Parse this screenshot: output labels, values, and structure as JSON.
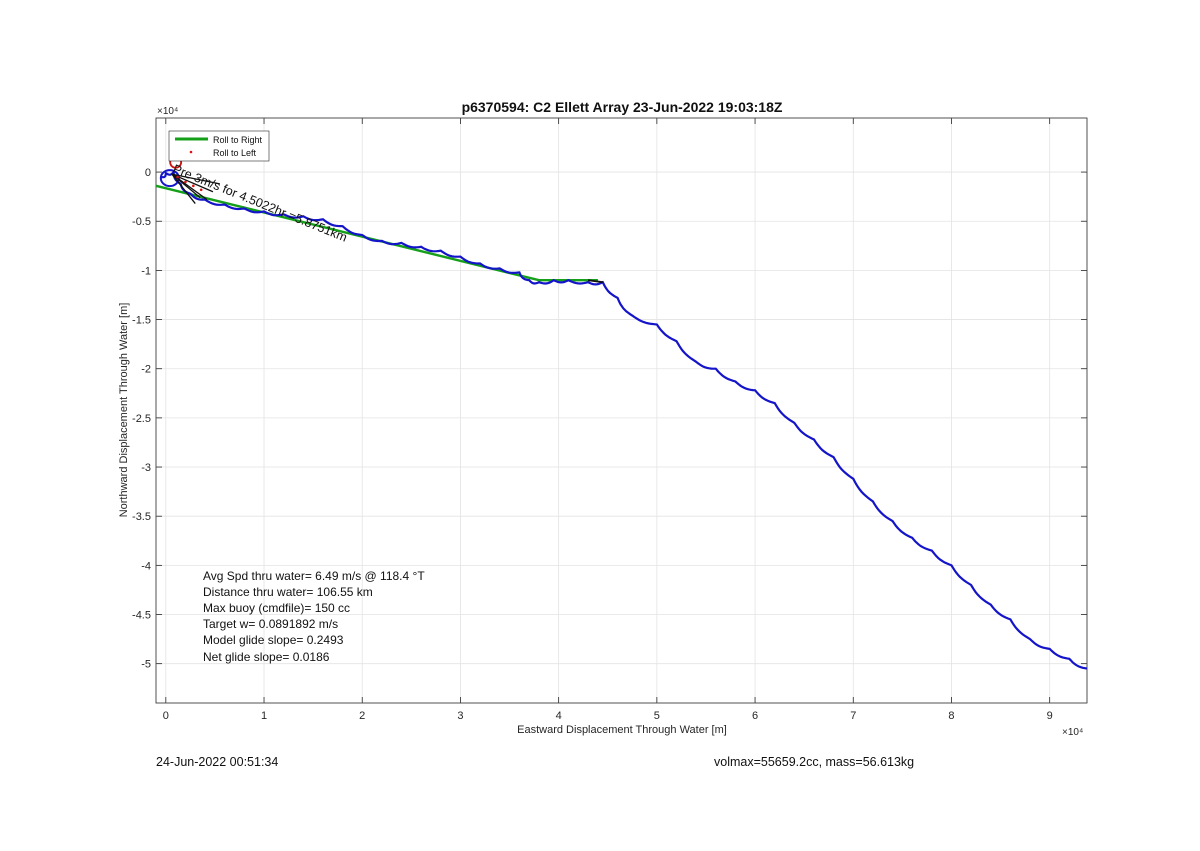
{
  "chart_data": {
    "type": "line",
    "title": "p6370594: C2 Ellett Array 23-Jun-2022 19:03:18Z",
    "xlabel": "Eastward Displacement Through Water [m]",
    "ylabel": "Northward Displacement Through Water [m]",
    "x_exponent_label": "×10⁴",
    "y_exponent_label": "×10⁴",
    "xlim": [
      -0.1,
      9.38
    ],
    "ylim": [
      -5.4,
      0.55
    ],
    "x_scale": 10000,
    "y_scale": 10000,
    "xticks": [
      0,
      1,
      2,
      3,
      4,
      5,
      6,
      7,
      8,
      9
    ],
    "xtick_labels": [
      "0",
      "1",
      "2",
      "3",
      "4",
      "5",
      "6",
      "7",
      "8",
      "9"
    ],
    "yticks": [
      0,
      -0.5,
      -1,
      -1.5,
      -2,
      -2.5,
      -3,
      -3.5,
      -4,
      -4.5,
      -5
    ],
    "ytick_labels": [
      "0",
      "-0.5",
      "-1",
      "-1.5",
      "-2",
      "-2.5",
      "-3",
      "-3.5",
      "-4",
      "-4.5",
      "-5"
    ],
    "grid": true,
    "legend_position": "top-left",
    "legend": [
      {
        "label": "Roll to Right",
        "color": "#16a01a",
        "marker": "line"
      },
      {
        "label": "Roll to Left",
        "color": "#e01010",
        "marker": "dot"
      }
    ],
    "series": [
      {
        "name": "Roll to Right",
        "color": "#16a01a",
        "x": [
          -0.1,
          3.8,
          4.4
        ],
        "y": [
          -0.14,
          -1.1,
          -1.1
        ]
      },
      {
        "color": "#1414c8",
        "x": [
          -0.05,
          0.0,
          0.08,
          0.15,
          0.25,
          0.4,
          0.6,
          0.8,
          1.0,
          1.2,
          1.4,
          1.6,
          1.8,
          2.0,
          2.2,
          2.4,
          2.6,
          2.8,
          3.0,
          3.2,
          3.4,
          3.6,
          3.7,
          3.8,
          3.95,
          4.1,
          4.3,
          4.45,
          4.6,
          4.75,
          5.0,
          5.2,
          5.4,
          5.6,
          5.8,
          6.0,
          6.2,
          6.4,
          6.6,
          6.8,
          7.0,
          7.2,
          7.4,
          7.6,
          7.8,
          8.0,
          8.2,
          8.4,
          8.6,
          8.8,
          9.0,
          9.2,
          9.38
        ],
        "y": [
          -0.05,
          -0.01,
          0.0,
          -0.12,
          -0.22,
          -0.28,
          -0.33,
          -0.37,
          -0.4,
          -0.43,
          -0.45,
          -0.48,
          -0.55,
          -0.64,
          -0.7,
          -0.72,
          -0.76,
          -0.8,
          -0.86,
          -0.93,
          -0.98,
          -1.02,
          -1.1,
          -1.12,
          -1.1,
          -1.1,
          -1.12,
          -1.12,
          -1.28,
          -1.46,
          -1.55,
          -1.72,
          -1.93,
          -2.0,
          -2.13,
          -2.22,
          -2.35,
          -2.55,
          -2.72,
          -2.9,
          -3.12,
          -3.35,
          -3.55,
          -3.72,
          -3.85,
          -4.0,
          -4.2,
          -4.4,
          -4.55,
          -4.75,
          -4.85,
          -4.95,
          -5.05
        ]
      }
    ],
    "annotations": [
      {
        "text": "Avg Spd thru water=  6.49 m/s @ 118.4 °T"
      },
      {
        "text": "Distance thru water= 106.55 km"
      },
      {
        "text": "Max buoy (cmdfile)= 150 cc"
      },
      {
        "text": "Target w= 0.0891892 m/s"
      },
      {
        "text": "Model glide slope= 0.2493"
      },
      {
        "text": "Net glide slope= 0.0186"
      }
    ],
    "rotated_label": "Pre 3m/s for 4.5022hr =5.8751km"
  },
  "footer": {
    "left": "24-Jun-2022 00:51:34",
    "right": "volmax=55659.2cc, mass=56.613kg"
  }
}
